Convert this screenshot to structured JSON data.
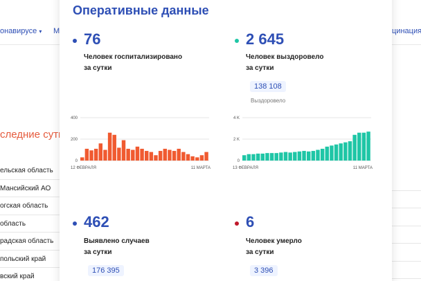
{
  "background": {
    "nav_left": "онавирусе",
    "nav_left_arrow": "▾",
    "nav_left2": "М",
    "nav_right": "цинация",
    "section_title": "следние сутки",
    "regions": [
      "ельская область",
      "Мансийский АО",
      "огская область",
      "область",
      "радская область",
      "польский край",
      "вский край"
    ]
  },
  "modal": {
    "title": "Оперативные данные",
    "hospitalized": {
      "value": "76",
      "label_line1": "Человек госпитализировано",
      "label_line2": "за сутки",
      "dot_color": "#2e4fb5"
    },
    "recovered": {
      "value": "2 645",
      "label_line1": "Человек выздоровело",
      "label_line2": "за сутки",
      "total": "138 108",
      "total_label": "Выздоровело",
      "dot_color": "#1fc6a6"
    },
    "cases": {
      "value": "462",
      "label_line1": "Выявлено случаев",
      "label_line2": "за сутки",
      "total": "176 395",
      "dot_color": "#2e4fb5"
    },
    "deaths": {
      "value": "6",
      "label_line1": "Человек умерло",
      "label_line2": "за сутки",
      "total": "3 396",
      "dot_color": "#c0182b"
    }
  },
  "chart_data": [
    {
      "type": "bar",
      "color": "#f05a30",
      "y_ticks": [
        "400",
        "200",
        "0"
      ],
      "ylim": [
        0,
        400
      ],
      "x_start_label": "12 ФЕВРАЛЯ",
      "x_end_label": "11 МАРТА",
      "values": [
        30,
        110,
        95,
        110,
        160,
        100,
        260,
        240,
        120,
        190,
        110,
        100,
        130,
        110,
        90,
        80,
        50,
        90,
        110,
        100,
        90,
        110,
        80,
        60,
        40,
        30,
        50,
        80
      ]
    },
    {
      "type": "bar",
      "color": "#1fc6a6",
      "y_ticks": [
        "4 K",
        "2 K",
        "0"
      ],
      "ylim": [
        0,
        4000
      ],
      "x_start_label": "13 ФЕВРАЛЯ",
      "x_end_label": "11 МАРТА",
      "values": [
        500,
        600,
        600,
        650,
        650,
        700,
        700,
        700,
        750,
        800,
        750,
        800,
        850,
        900,
        850,
        900,
        1000,
        1100,
        1300,
        1400,
        1500,
        1600,
        1700,
        1800,
        2400,
        2600,
        2600,
        2700
      ]
    }
  ]
}
